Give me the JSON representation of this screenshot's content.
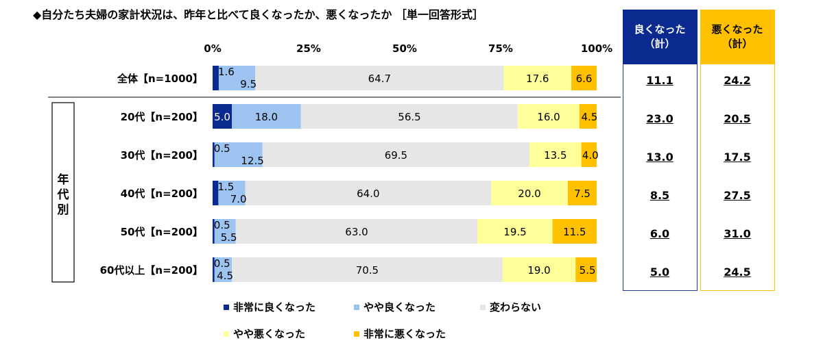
{
  "chart_data": {
    "type": "bar",
    "orientation": "horizontal",
    "stacked": true,
    "percent": true,
    "title": "◆自分たち夫婦の家計状況は、昨年と比べて良くなったか、悪くなったか ［単一回答形式］",
    "x_ticks": [
      "0%",
      "25%",
      "50%",
      "75%",
      "100%"
    ],
    "xlim": [
      0,
      100
    ],
    "group_label": "年代別",
    "categories": [
      "全体【n=1000】",
      "20代【n=200】",
      "30代【n=200】",
      "40代【n=200】",
      "50代【n=200】",
      "60代以上【n=200】"
    ],
    "series": [
      {
        "name": "非常に良くなった",
        "color": "#0b2a8f",
        "values": [
          1.6,
          5.0,
          0.5,
          1.5,
          0.5,
          0.5
        ]
      },
      {
        "name": "やや良くなった",
        "color": "#9dc3f0",
        "values": [
          9.5,
          18.0,
          12.5,
          7.0,
          5.5,
          4.5
        ]
      },
      {
        "name": "変わらない",
        "color": "#e6e6e6",
        "values": [
          64.7,
          56.5,
          69.5,
          64.0,
          63.0,
          70.5
        ]
      },
      {
        "name": "やや悪くなった",
        "color": "#ffff99",
        "values": [
          17.6,
          16.0,
          13.5,
          20.0,
          19.5,
          19.0
        ]
      },
      {
        "name": "非常に悪くなった",
        "color": "#ffc000",
        "values": [
          6.6,
          4.5,
          4.0,
          7.5,
          11.5,
          5.5
        ]
      }
    ],
    "labels": [
      [
        "1.6",
        "9.5",
        "64.7",
        "17.6",
        "6.6"
      ],
      [
        "5.0",
        "18.0",
        "56.5",
        "16.0",
        "4.5"
      ],
      [
        "0.5",
        "12.5",
        "69.5",
        "13.5",
        "4.0"
      ],
      [
        "1.5",
        "7.0",
        "64.0",
        "20.0",
        "7.5"
      ],
      [
        "0.5",
        "5.5",
        "63.0",
        "19.5",
        "11.5"
      ],
      [
        "0.5",
        "4.5",
        "70.5",
        "19.0",
        "5.5"
      ]
    ],
    "legend_position": "bottom"
  },
  "summary": {
    "good": {
      "header_line1": "良くなった",
      "header_line2": "（計）",
      "values": [
        "11.1",
        "23.0",
        "13.0",
        "8.5",
        "6.0",
        "5.0"
      ]
    },
    "bad": {
      "header_line1": "悪くなった",
      "header_line2": "（計）",
      "values": [
        "24.2",
        "20.5",
        "17.5",
        "27.5",
        "31.0",
        "24.5"
      ]
    }
  }
}
